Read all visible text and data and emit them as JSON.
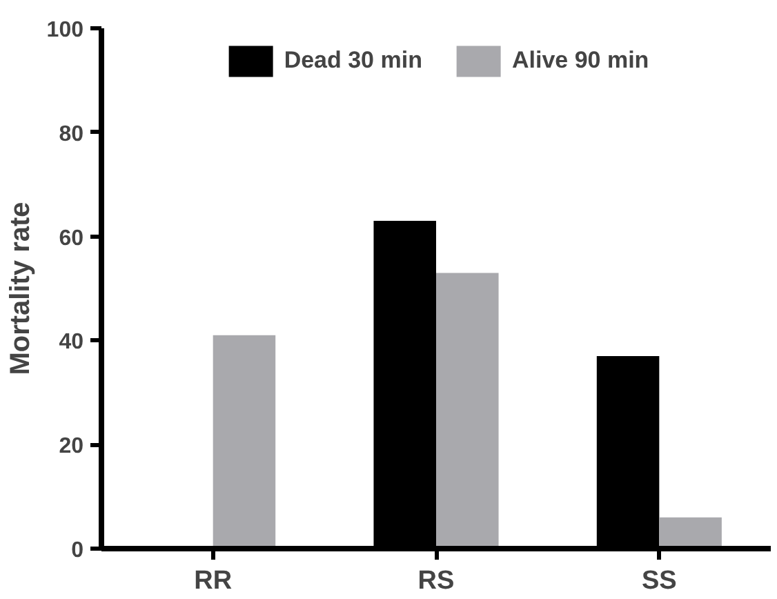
{
  "chart_data": {
    "type": "bar",
    "categories": [
      "RR",
      "RS",
      "SS"
    ],
    "ylabel": "Mortality rate",
    "ylim": [
      0,
      100
    ],
    "yticks": [
      0,
      20,
      40,
      60,
      80,
      100
    ],
    "grid": false,
    "legend": "top",
    "series": [
      {
        "name": "Dead 30 min",
        "color": "#000000",
        "values": [
          0,
          63,
          37
        ]
      },
      {
        "name": "Alive 90 min",
        "color": "#a9a9ad",
        "values": [
          41,
          53,
          6
        ]
      }
    ]
  }
}
